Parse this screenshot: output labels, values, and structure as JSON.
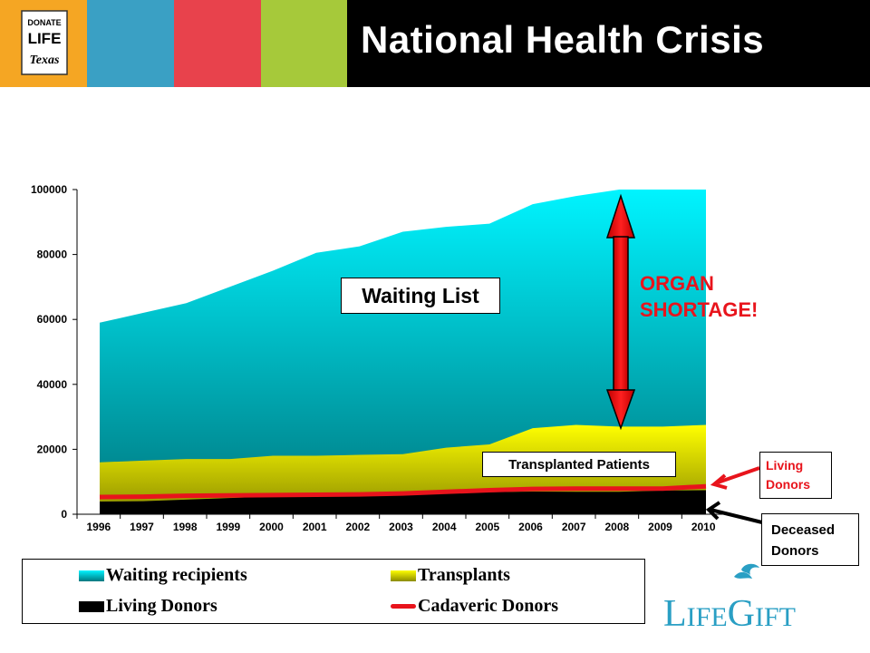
{
  "header": {
    "title": "National Health Crisis",
    "logo_left_text": [
      "DONATE",
      "LIFE",
      "Texas"
    ],
    "band_colors": [
      "#f5a623",
      "#3aa0c4",
      "#e8424c",
      "#a6c93a",
      "#000000"
    ]
  },
  "chart_data": {
    "type": "area",
    "x": [
      "1996",
      "1997",
      "1998",
      "1999",
      "2000",
      "2001",
      "2002",
      "2003",
      "2004",
      "2005",
      "2006",
      "2007",
      "2008",
      "2009",
      "2010"
    ],
    "ylim": [
      0,
      100000
    ],
    "yticks": [
      "0",
      "20000",
      "40000",
      "60000",
      "80000",
      "100000"
    ],
    "series": [
      {
        "name": "Waiting recipients",
        "color": "#1ab8c4",
        "values": [
          59000,
          62000,
          65000,
          70000,
          75000,
          80500,
          82500,
          87000,
          88500,
          89500,
          95500,
          98000,
          100000,
          100000,
          100000
        ]
      },
      {
        "name": "Transplants",
        "color": "#ffff00",
        "values": [
          16000,
          16500,
          17000,
          17000,
          18000,
          18000,
          18300,
          18500,
          20500,
          21500,
          26500,
          27500,
          27000,
          27000,
          27500
        ]
      },
      {
        "name": "Living Donors",
        "color": "#000000",
        "values": [
          3900,
          4000,
          4500,
          5000,
          5500,
          5800,
          6000,
          6200,
          6400,
          6800,
          7000,
          6900,
          6900,
          7300,
          7400
        ]
      },
      {
        "name": "Cadaveric Donors",
        "color": "#e8141c",
        "values": [
          5300,
          5400,
          5700,
          5800,
          5900,
          6000,
          6100,
          6400,
          6900,
          7400,
          7800,
          7900,
          7900,
          7900,
          8600
        ]
      }
    ],
    "legend": [
      "Waiting recipients",
      "Transplants",
      "Living Donors",
      "Cadaveric Donors"
    ],
    "annotations": {
      "waiting_list": "Waiting List",
      "transplanted": "Transplanted Patients",
      "shortage": [
        "ORGAN",
        "SHORTAGE!"
      ],
      "living": [
        "Living",
        "Donors"
      ],
      "deceased": [
        "Deceased",
        "Donors"
      ]
    }
  },
  "footer_logo": {
    "text_l": "L",
    "text_ife": "IFE",
    "text_g": "G",
    "text_ift": "IFT",
    "color": "#2a9fc4"
  }
}
